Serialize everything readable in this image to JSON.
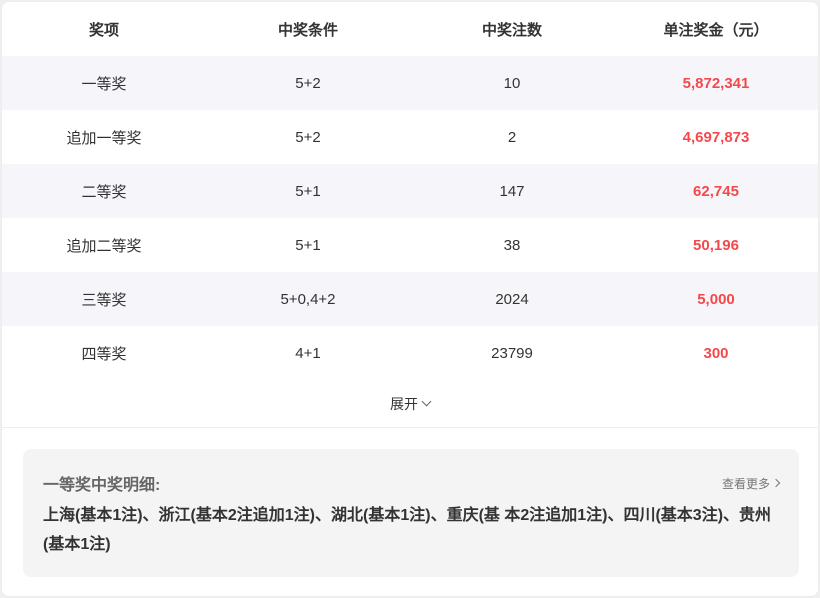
{
  "table": {
    "headers": [
      "奖项",
      "中奖条件",
      "中奖注数",
      "单注奖金（元）"
    ],
    "rows": [
      {
        "name": "一等奖",
        "condition": "5+2",
        "count": "10",
        "prize": "5,872,341"
      },
      {
        "name": "追加一等奖",
        "condition": "5+2",
        "count": "2",
        "prize": "4,697,873"
      },
      {
        "name": "二等奖",
        "condition": "5+1",
        "count": "147",
        "prize": "62,745"
      },
      {
        "name": "追加二等奖",
        "condition": "5+1",
        "count": "38",
        "prize": "50,196"
      },
      {
        "name": "三等奖",
        "condition": "5+0,4+2",
        "count": "2024",
        "prize": "5,000"
      },
      {
        "name": "四等奖",
        "condition": "4+1",
        "count": "23799",
        "prize": "300"
      }
    ]
  },
  "expand_label": "展开",
  "detail": {
    "title": "一等奖中奖明细:",
    "more_label": "查看更多",
    "text": "上海(基本1注)、浙江(基本2注追加1注)、湖北(基本1注)、重庆(基 本2注追加1注)、四川(基本3注)、贵州(基本1注)"
  },
  "colors": {
    "prize": "#f5484b",
    "row_alt": "#f6f6fa",
    "detail_bg": "#f4f4f4"
  }
}
